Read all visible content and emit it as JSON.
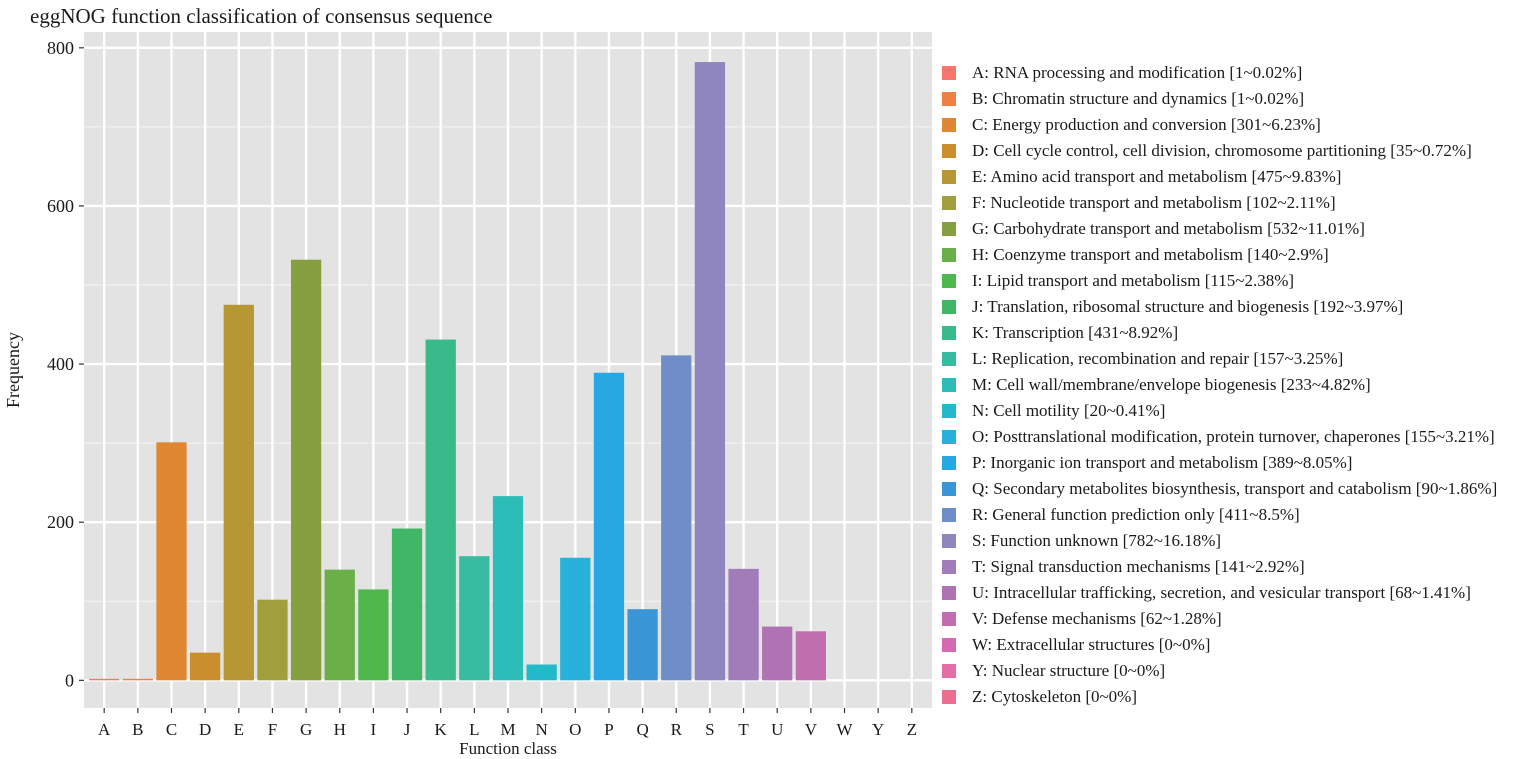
{
  "chart_data": {
    "type": "bar",
    "title": "eggNOG function classification of consensus sequence",
    "xlabel": "Function class",
    "ylabel": "Frequency",
    "ylim": [
      -35,
      820
    ],
    "yticks": [
      0,
      200,
      400,
      600,
      800
    ],
    "grid": true,
    "legend_position": "right",
    "categories": [
      "A",
      "B",
      "C",
      "D",
      "E",
      "F",
      "G",
      "H",
      "I",
      "J",
      "K",
      "L",
      "M",
      "N",
      "O",
      "P",
      "Q",
      "R",
      "S",
      "T",
      "U",
      "V",
      "W",
      "Y",
      "Z"
    ],
    "values": [
      1,
      1,
      301,
      35,
      475,
      102,
      532,
      140,
      115,
      192,
      431,
      157,
      233,
      20,
      155,
      389,
      90,
      411,
      782,
      141,
      68,
      62,
      0,
      0,
      0
    ],
    "colors": [
      "#F8766D",
      "#EE8043",
      "#DF8732",
      "#CB8E2D",
      "#B79634",
      "#A09E3D",
      "#869F40",
      "#6BAF48",
      "#4EB84D",
      "#40B766",
      "#3AB98A",
      "#37BCA2",
      "#2DBDB8",
      "#22BACB",
      "#28B1DB",
      "#27A8E3",
      "#3A96D6",
      "#6F8DC6",
      "#8F86C0",
      "#A07CB9",
      "#AF73B3",
      "#C06EAE",
      "#D56AB0",
      "#E46DA8",
      "#EC6F92"
    ],
    "legend": [
      "A: RNA processing and modification [1~0.02%]",
      "B: Chromatin structure and dynamics [1~0.02%]",
      "C: Energy production and conversion [301~6.23%]",
      "D: Cell cycle control, cell division, chromosome partitioning [35~0.72%]",
      "E: Amino acid transport and metabolism [475~9.83%]",
      "F: Nucleotide transport and metabolism [102~2.11%]",
      "G: Carbohydrate transport and metabolism [532~11.01%]",
      "H: Coenzyme transport and metabolism [140~2.9%]",
      "I: Lipid transport and metabolism [115~2.38%]",
      "J: Translation, ribosomal structure and biogenesis [192~3.97%]",
      "K: Transcription [431~8.92%]",
      "L: Replication, recombination and repair [157~3.25%]",
      "M: Cell wall/membrane/envelope biogenesis [233~4.82%]",
      "N: Cell motility [20~0.41%]",
      "O: Posttranslational modification, protein turnover, chaperones [155~3.21%]",
      "P: Inorganic ion transport and metabolism [389~8.05%]",
      "Q: Secondary metabolites biosynthesis, transport and catabolism [90~1.86%]",
      "R: General function prediction only [411~8.5%]",
      "S: Function unknown [782~16.18%]",
      "T: Signal transduction mechanisms [141~2.92%]",
      "U: Intracellular trafficking, secretion, and vesicular transport [68~1.41%]",
      "V: Defense mechanisms [62~1.28%]",
      "W: Extracellular structures [0~0%]",
      "Y: Nuclear structure [0~0%]",
      "Z: Cytoskeleton [0~0%]"
    ]
  }
}
